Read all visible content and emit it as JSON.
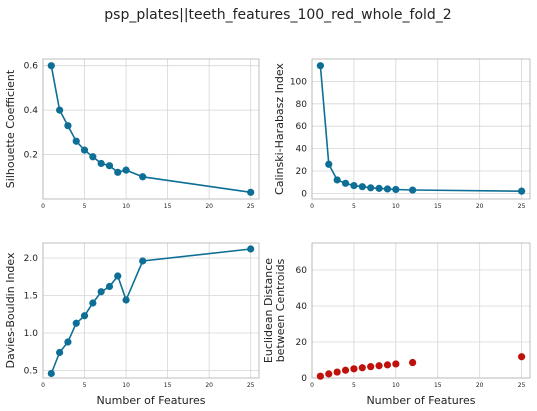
{
  "figure": {
    "title": "psp_plates||teeth_features_100_red_whole_fold_2"
  },
  "chart_data": [
    {
      "type": "line",
      "ylabel": [
        "Silhouette Coefficient"
      ],
      "xlabel": "",
      "x": [
        1,
        2,
        3,
        4,
        5,
        6,
        7,
        8,
        9,
        10,
        12,
        25
      ],
      "y": [
        0.6,
        0.4,
        0.33,
        0.26,
        0.22,
        0.19,
        0.16,
        0.15,
        0.12,
        0.13,
        0.1,
        0.03
      ],
      "xlim": [
        0,
        26
      ],
      "ylim": [
        0.0,
        0.63
      ],
      "xticks": [
        0,
        5,
        10,
        15,
        20,
        25
      ],
      "yticks": [
        0.2,
        0.4,
        0.6
      ],
      "ytick_labels": [
        "0.2",
        "0.4",
        "0.6"
      ],
      "color": "#0e6f96",
      "grid": true
    },
    {
      "type": "line",
      "ylabel": [
        "Calinski-Harabasz Index"
      ],
      "xlabel": "",
      "x": [
        1,
        2,
        3,
        4,
        5,
        6,
        7,
        8,
        9,
        10,
        12,
        25
      ],
      "y": [
        114,
        26,
        12,
        9,
        7,
        6,
        5,
        4.5,
        4,
        3.5,
        3,
        2
      ],
      "xlim": [
        0,
        26
      ],
      "ylim": [
        -5,
        120
      ],
      "xticks": [
        0,
        5,
        10,
        15,
        20,
        25
      ],
      "yticks": [
        0,
        20,
        40,
        60,
        80,
        100
      ],
      "ytick_labels": [
        "0",
        "20",
        "40",
        "60",
        "80",
        "100"
      ],
      "color": "#0e6f96",
      "grid": true
    },
    {
      "type": "line",
      "ylabel": [
        "Davies-Bouldin Index"
      ],
      "xlabel": "Number of Features",
      "x": [
        1,
        2,
        3,
        4,
        5,
        6,
        7,
        8,
        9,
        10,
        12,
        25
      ],
      "y": [
        0.46,
        0.74,
        0.88,
        1.13,
        1.23,
        1.4,
        1.55,
        1.62,
        1.76,
        1.44,
        1.96,
        2.12
      ],
      "xlim": [
        0,
        26
      ],
      "ylim": [
        0.4,
        2.2
      ],
      "xticks": [
        0,
        5,
        10,
        15,
        20,
        25
      ],
      "yticks": [
        0.5,
        1.0,
        1.5,
        2.0
      ],
      "ytick_labels": [
        "0.5",
        "1.0",
        "1.5",
        "2.0"
      ],
      "color": "#0e6f96",
      "grid": true
    },
    {
      "type": "scatter",
      "ylabel": [
        "Euclidean Distance",
        "between Centroids"
      ],
      "xlabel": "Number of Features",
      "x": [
        1,
        2,
        3,
        4,
        5,
        6,
        7,
        8,
        9,
        10,
        12,
        25
      ],
      "y": [
        1.0,
        2.3,
        3.3,
        4.3,
        5.1,
        5.7,
        6.3,
        6.8,
        7.3,
        7.8,
        8.6,
        11.8
      ],
      "xlim": [
        0,
        26
      ],
      "ylim": [
        0,
        75
      ],
      "xticks": [
        0,
        5,
        10,
        15,
        20,
        25
      ],
      "yticks": [
        0,
        20,
        40,
        60
      ],
      "ytick_labels": [
        "0",
        "20",
        "40",
        "60"
      ],
      "color": "#c0100c",
      "grid": true
    }
  ]
}
